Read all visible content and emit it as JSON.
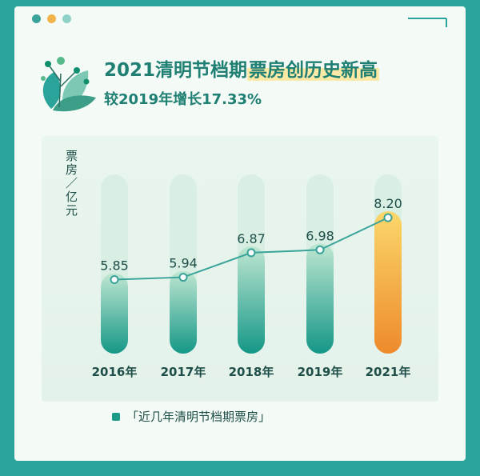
{
  "header": {
    "title_part1": "2021清明节档期",
    "title_part2": "票房创历史新高",
    "subtitle": "较2019年增长17.33%"
  },
  "legend": {
    "label": "「近几年清明节档期票房」"
  },
  "colors": {
    "background": "#2aa39a",
    "bar_green": "#1d9a87",
    "bar_highlight": "#f3a63a",
    "line": "#3aa39a",
    "dots": [
      "#3aa39a",
      "#f0b44a",
      "#8fd1c6"
    ]
  },
  "chart_data": {
    "type": "bar",
    "categories": [
      "2016年",
      "2017年",
      "2018年",
      "2019年",
      "2021年"
    ],
    "values": [
      5.85,
      5.94,
      6.87,
      6.98,
      8.2
    ],
    "value_labels": [
      "5.85",
      "5.94",
      "6.87",
      "6.98",
      "8.20"
    ],
    "ylabel": "票房/亿元",
    "overlay_line": true,
    "highlight_category": "2021年",
    "grid": false
  }
}
